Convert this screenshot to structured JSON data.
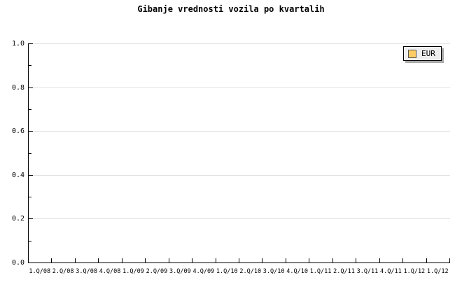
{
  "title": "Gibanje vrednosti vozila po kvartalih",
  "legend": {
    "items": [
      {
        "label": "EUR",
        "swatch_color": "#FFCC66"
      }
    ]
  },
  "colors": {
    "background": "#FFFFFF",
    "grid": "#E0E0E0",
    "axis": "#000000",
    "text": "#000000",
    "legend_bg": "#EEEEEE",
    "legend_border": "#000000",
    "legend_shadow": "#AAAAAA",
    "swatch_border": "#555555"
  },
  "chart_data": {
    "type": "line",
    "title": "Gibanje vrednosti vozila po kvartalih",
    "categories": [
      "1.Q/08",
      "2.Q/08",
      "3.Q/08",
      "4.Q/08",
      "1.Q/09",
      "2.Q/09",
      "3.Q/09",
      "4.Q/09",
      "1.Q/10",
      "2.Q/10",
      "3.Q/10",
      "4.Q/10",
      "1.Q/11",
      "2.Q/11",
      "3.Q/11",
      "4.Q/11",
      "1.Q/12",
      "1.Q/12"
    ],
    "series": [
      {
        "name": "EUR",
        "values": []
      }
    ],
    "plot_empty": true,
    "xlabel": "",
    "ylabel": "",
    "ylim": [
      0.0,
      1.0
    ],
    "ytick_major_interval": 0.2,
    "ytick_minor_interval": 0.1,
    "ytick_labels": [
      "0.0",
      "0.2",
      "0.4",
      "0.6",
      "0.8",
      "1.0"
    ],
    "grid": "horizontal-major-only",
    "legend_position": "top-right"
  }
}
